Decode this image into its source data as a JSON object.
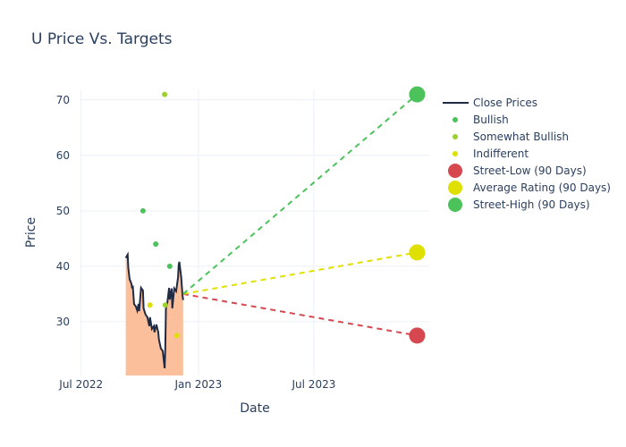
{
  "chart_data": {
    "type": "line",
    "title": "U Price Vs. Targets",
    "xlabel": "Date",
    "ylabel": "Price",
    "xlim": [
      "2022-06-30",
      "2023-12-29"
    ],
    "ylim": [
      20.3,
      71.9
    ],
    "x_ticks": [
      {
        "date": "2022-07-01",
        "label": "Jul 2022"
      },
      {
        "date": "2023-01-01",
        "label": "Jan 2023"
      },
      {
        "date": "2023-07-01",
        "label": "Jul 2023"
      }
    ],
    "y_ticks": [
      30,
      40,
      50,
      60,
      70
    ],
    "grid": true,
    "legend_position": "right",
    "colors": {
      "close": "#1f2a44",
      "fill": "#fcbf9c",
      "bullish": "#4cc25a",
      "somewhat_bullish": "#9ad12e",
      "indifferent": "#e0e000",
      "low": "#d6474f",
      "avg": "#e0e000",
      "high": "#4cc25a"
    },
    "series": [
      {
        "name": "Close Prices",
        "kind": "line",
        "points": [
          [
            "2022-09-09",
            41.5
          ],
          [
            "2022-09-12",
            42.1
          ],
          [
            "2022-09-13",
            39.7
          ],
          [
            "2022-09-15",
            37.7
          ],
          [
            "2022-09-18",
            36.8
          ],
          [
            "2022-09-19",
            36.0
          ],
          [
            "2022-09-20",
            36.5
          ],
          [
            "2022-09-22",
            33.2
          ],
          [
            "2022-09-25",
            32.7
          ],
          [
            "2022-09-27",
            32.0
          ],
          [
            "2022-09-29",
            33.2
          ],
          [
            "2022-09-30",
            31.9
          ],
          [
            "2022-10-03",
            36.1
          ],
          [
            "2022-10-06",
            35.6
          ],
          [
            "2022-10-07",
            32.4
          ],
          [
            "2022-10-10",
            31.3
          ],
          [
            "2022-10-13",
            30.8
          ],
          [
            "2022-10-16",
            29.2
          ],
          [
            "2022-10-17",
            30.8
          ],
          [
            "2022-10-20",
            28.7
          ],
          [
            "2022-10-23",
            29.2
          ],
          [
            "2022-10-24",
            28.1
          ],
          [
            "2022-10-27",
            29.5
          ],
          [
            "2022-10-30",
            28.1
          ],
          [
            "2022-10-31",
            26.8
          ],
          [
            "2022-11-03",
            25.2
          ],
          [
            "2022-11-06",
            24.7
          ],
          [
            "2022-11-09",
            21.6
          ],
          [
            "2022-11-10",
            25.2
          ],
          [
            "2022-11-11",
            32.4
          ],
          [
            "2022-11-13",
            33.2
          ],
          [
            "2022-11-16",
            36.1
          ],
          [
            "2022-11-17",
            34.0
          ],
          [
            "2022-11-20",
            36.0
          ],
          [
            "2022-11-21",
            32.4
          ],
          [
            "2022-11-24",
            36.0
          ],
          [
            "2022-11-27",
            35.5
          ],
          [
            "2022-11-30",
            38.0
          ],
          [
            "2022-12-01",
            40.2
          ],
          [
            "2022-12-02",
            40.8
          ],
          [
            "2022-12-05",
            38.0
          ],
          [
            "2022-12-07",
            34.8
          ],
          [
            "2022-12-08",
            33.9
          ]
        ]
      },
      {
        "name": "Bullish",
        "kind": "scatter",
        "points": [
          [
            "2022-10-06",
            50
          ],
          [
            "2022-10-26",
            44
          ],
          [
            "2022-11-17",
            40
          ]
        ]
      },
      {
        "name": "Somewhat Bullish",
        "kind": "scatter",
        "points": [
          [
            "2022-11-09",
            71
          ],
          [
            "2022-11-10",
            33
          ]
        ]
      },
      {
        "name": "Indifferent",
        "kind": "scatter",
        "points": [
          [
            "2022-10-17",
            33
          ],
          [
            "2022-11-28",
            27.5
          ]
        ]
      },
      {
        "name": "Street-Low (90 Days)",
        "kind": "target",
        "from": [
          "2022-12-08",
          35
        ],
        "to": [
          "2023-12-10",
          27.5
        ]
      },
      {
        "name": "Average Rating (90 Days)",
        "kind": "target",
        "from": [
          "2022-12-08",
          35
        ],
        "to": [
          "2023-12-10",
          42.5
        ]
      },
      {
        "name": "Street-High (90 Days)",
        "kind": "target",
        "from": [
          "2022-12-08",
          35
        ],
        "to": [
          "2023-12-10",
          71
        ]
      }
    ]
  }
}
